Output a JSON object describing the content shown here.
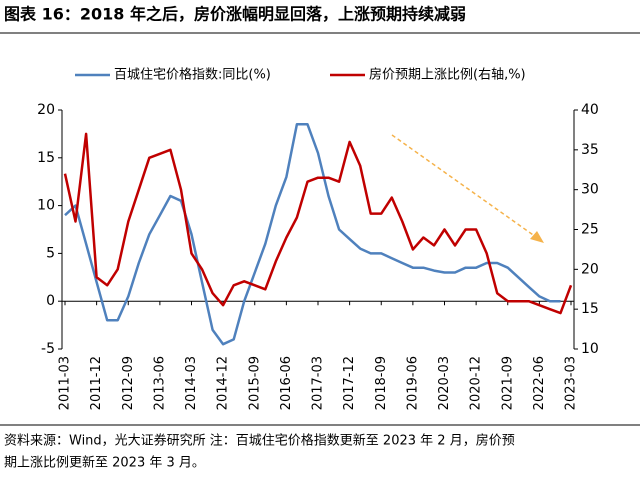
{
  "chart_data": {
    "type": "line",
    "title": "图表 16：2018 年之后，房价涨幅明显回落，上涨预期持续减弱",
    "source_lines": [
      "资料来源：Wind，光大证券研究所  注：百城住宅价格指数更新至 2023 年 2 月，房价预",
      "期上涨比例更新至 2023 年 3 月。"
    ],
    "x": [
      "2011-03",
      "2011-06",
      "2011-09",
      "2011-12",
      "2012-03",
      "2012-06",
      "2012-09",
      "2012-12",
      "2013-03",
      "2013-06",
      "2013-09",
      "2013-12",
      "2014-03",
      "2014-06",
      "2014-09",
      "2014-12",
      "2015-03",
      "2015-06",
      "2015-09",
      "2015-12",
      "2016-03",
      "2016-06",
      "2016-09",
      "2016-12",
      "2017-03",
      "2017-06",
      "2017-09",
      "2017-12",
      "2018-03",
      "2018-06",
      "2018-09",
      "2018-12",
      "2019-03",
      "2019-06",
      "2019-09",
      "2019-12",
      "2020-03",
      "2020-06",
      "2020-09",
      "2020-12",
      "2021-03",
      "2021-06",
      "2021-09",
      "2021-12",
      "2022-03",
      "2022-06",
      "2022-09",
      "2022-12",
      "2023-03"
    ],
    "xticks": [
      "2011-03",
      "2011-12",
      "2012-09",
      "2013-06",
      "2014-03",
      "2014-12",
      "2015-09",
      "2016-06",
      "2017-03",
      "2017-12",
      "2018-09",
      "2019-06",
      "2020-03",
      "2020-12",
      "2021-09",
      "2022-06",
      "2023-03"
    ],
    "series": [
      {
        "name": "百城住宅价格指数:同比(%)",
        "color": "#4f81bd",
        "values": [
          9,
          10,
          6,
          2,
          -2,
          -2,
          0.5,
          4,
          7,
          9,
          11,
          10.5,
          7,
          2,
          -3,
          -4.5,
          -4,
          0,
          3,
          6,
          10,
          13,
          18.5,
          18.5,
          15.5,
          11,
          7.5,
          6.5,
          5.5,
          5,
          5,
          4.5,
          4,
          3.5,
          3.5,
          3.2,
          3,
          3,
          3.5,
          3.5,
          4,
          4,
          3.5,
          2.5,
          1.5,
          0.5,
          0,
          0,
          null
        ]
      },
      {
        "name": "房价预期上涨比例(右轴,%)",
        "color": "#c00000",
        "axis": "y2",
        "values": [
          32,
          26,
          37,
          19,
          18,
          20,
          26,
          30,
          34,
          34.5,
          35,
          30,
          22,
          20,
          17,
          15.5,
          18,
          18.5,
          18,
          17.5,
          21,
          24,
          26.5,
          31,
          31.5,
          31.5,
          31,
          36,
          33,
          27,
          27,
          29,
          26,
          22.5,
          24,
          23,
          25,
          23,
          25,
          25,
          22,
          17,
          16,
          16,
          16,
          15.5,
          15,
          14.5,
          18
        ]
      }
    ],
    "ylim": [
      -5,
      20
    ],
    "yticks": [
      -5,
      0,
      5,
      10,
      15,
      20
    ],
    "y2lim": [
      10,
      40
    ],
    "y2ticks": [
      10,
      15,
      20,
      25,
      30,
      35,
      40
    ]
  }
}
